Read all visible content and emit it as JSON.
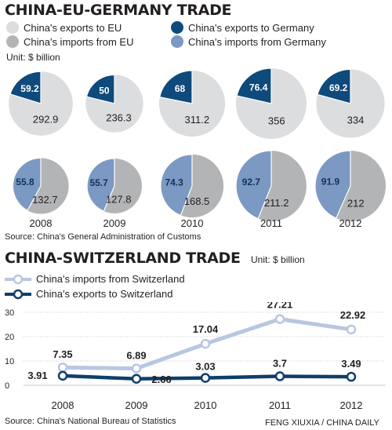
{
  "colors": {
    "exports_eu": "#dcdddf",
    "imports_eu": "#b3b4b6",
    "exports_germany": "#0e4a7c",
    "imports_germany": "#7b99c2",
    "swiss_imports": "#b9c6e2",
    "swiss_exports": "#0e3f6a"
  },
  "section1": {
    "title": "CHINA-EU-GERMANY TRADE",
    "unit": "Unit: $ billion",
    "legend": [
      "China's exports to EU",
      "China's exports to Germany",
      "China's imports from EU",
      "China's imports from Germany"
    ],
    "source": "Source: China's General Administration of Customs"
  },
  "section2": {
    "title": "CHINA-SWITZERLAND TRADE",
    "unit": "Unit: $ billion",
    "legend": [
      "China's imports from Switzerland",
      "China's exports to Switzerland"
    ],
    "source": "Source: China's National Bureau of Statistics",
    "credit": "FENG XIUXIA / CHINA DAILY"
  },
  "chart_data": [
    {
      "type": "pie",
      "categories": [
        "2008",
        "2009",
        "2010",
        "2011",
        "2012"
      ],
      "series": [
        {
          "name": "China's exports to EU",
          "values": [
            292.9,
            236.3,
            311.2,
            356,
            334
          ]
        },
        {
          "name": "China's exports to Germany",
          "values": [
            59.2,
            50,
            68,
            76.4,
            69.2
          ]
        }
      ]
    },
    {
      "type": "pie",
      "categories": [
        "2008",
        "2009",
        "2010",
        "2011",
        "2012"
      ],
      "series": [
        {
          "name": "China's imports from EU",
          "values": [
            132.7,
            127.8,
            168.5,
            211.2,
            212
          ]
        },
        {
          "name": "China's imports from Germany",
          "values": [
            55.8,
            55.7,
            74.3,
            92.7,
            91.9
          ]
        }
      ]
    },
    {
      "type": "line",
      "x": [
        "2008",
        "2009",
        "2010",
        "2011",
        "2012"
      ],
      "series": [
        {
          "name": "China's imports from Switzerland",
          "values": [
            7.35,
            6.89,
            17.04,
            27.21,
            22.92
          ],
          "labels": [
            "7.35",
            "6.89",
            "17.04",
            "27.21",
            "22.92"
          ]
        },
        {
          "name": "China's exports to Switzerland",
          "values": [
            3.91,
            2.66,
            3.03,
            3.7,
            3.49
          ],
          "labels": [
            "3.91",
            "2.66",
            "3.03",
            "3.7",
            "3.49"
          ]
        }
      ],
      "yticks": [
        0,
        10,
        20,
        30
      ],
      "ylim": [
        0,
        30
      ],
      "grid": true
    }
  ]
}
